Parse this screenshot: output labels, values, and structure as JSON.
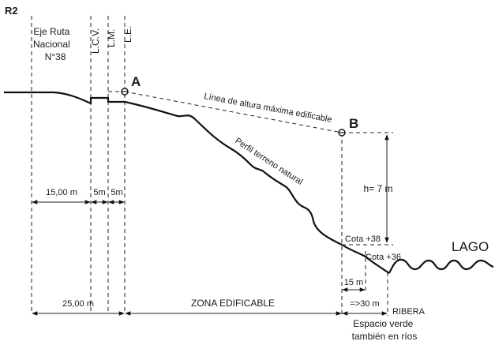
{
  "diagram": {
    "id_label": "R2",
    "axis_label": [
      "Eje Ruta",
      "Nacional",
      "N°38"
    ],
    "vertical_labels": {
      "lcv": "L.C.V.",
      "lm": "L.M.",
      "le": "L.E."
    },
    "point_a": "A",
    "point_b": "B",
    "max_height_line": "Línea de altura máxima edificable",
    "terrain_label": "Perfil terreno natural",
    "height": "h= 7 m",
    "cota_38": "Cota +38",
    "cota_36": "Cota +36",
    "lake": "LAGO",
    "dims": {
      "d15": "15,00 m",
      "d5a": "5m",
      "d5b": "5m",
      "d25": "25,00 m",
      "zona": "ZONA EDIFICABLE",
      "d15r": "15 m",
      "d30": "=>30 m",
      "ribera": "RIBERA"
    },
    "green_space": [
      "Espacio verde",
      "también en ríos"
    ]
  }
}
